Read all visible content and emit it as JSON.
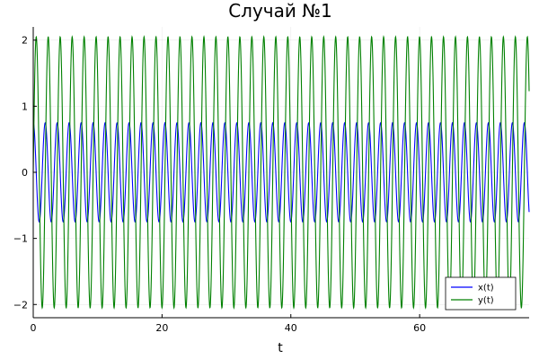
{
  "chart_data": {
    "type": "line",
    "title": "Случай №1",
    "xlabel": "t",
    "ylabel": "",
    "xlim": [
      0,
      77
    ],
    "ylim": [
      -2.2,
      2.2
    ],
    "xticks": [
      0,
      20,
      40,
      60
    ],
    "yticks": [
      -2,
      -1,
      0,
      1,
      2
    ],
    "grid": true,
    "legend_position": "bottom-right",
    "period": 1.86,
    "series": [
      {
        "name": "x(t)",
        "color": "#0000ff",
        "amplitude": 0.75,
        "phase_deg": 90,
        "offset": 0
      },
      {
        "name": "y(t)",
        "color": "#008000",
        "amplitude": 2.05,
        "phase_deg": 0,
        "offset": 0
      }
    ]
  }
}
